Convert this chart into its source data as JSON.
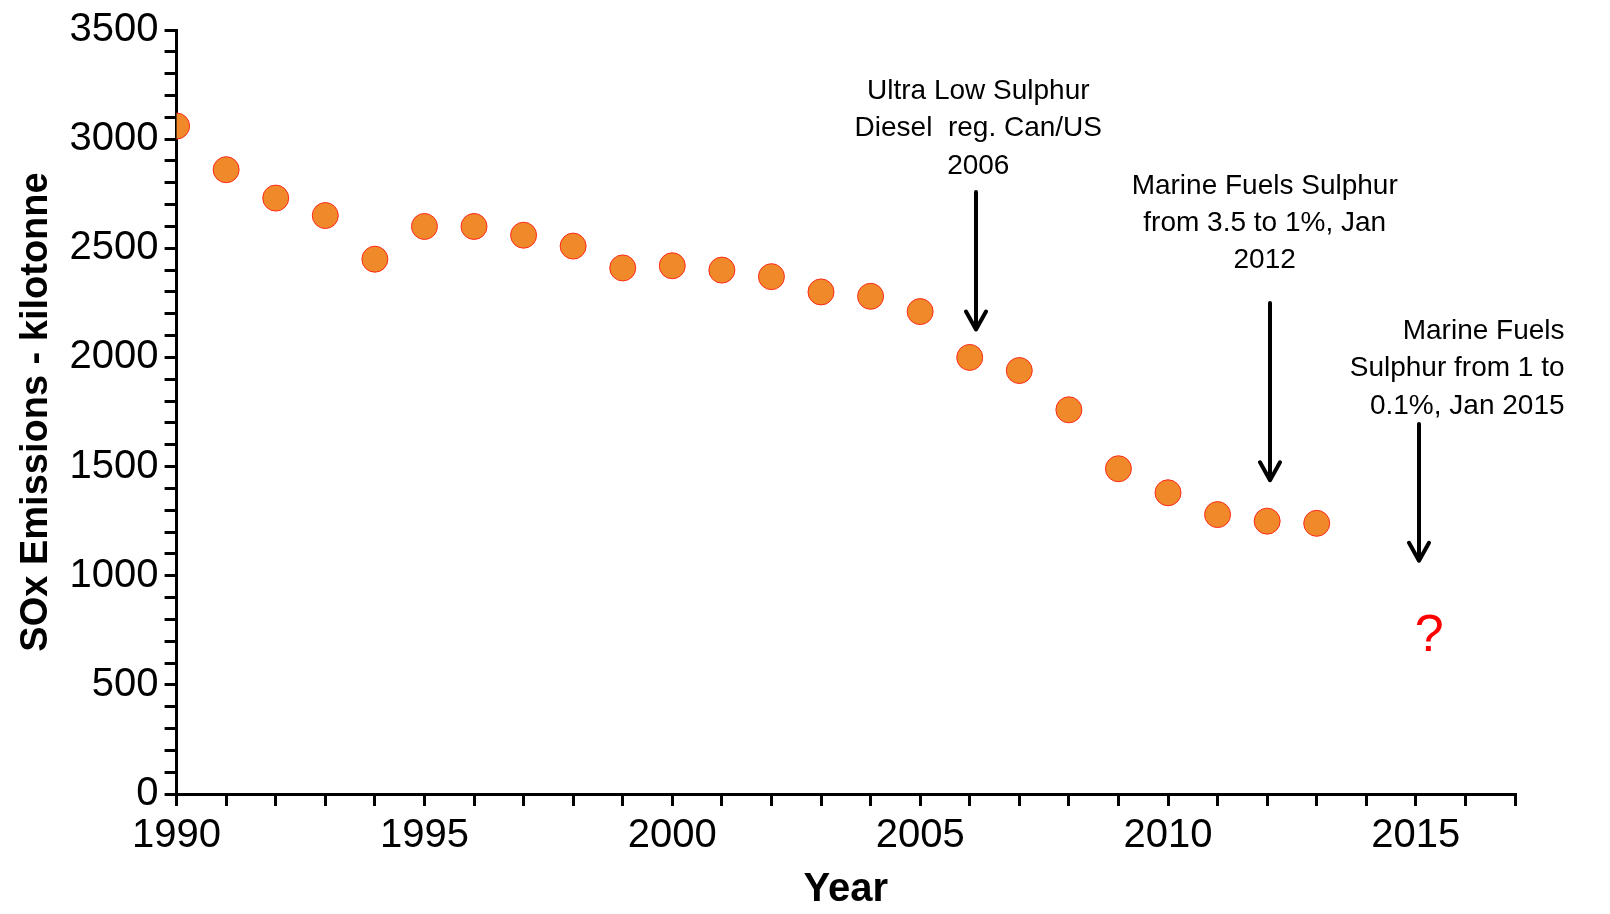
{
  "chart_data": {
    "type": "scatter",
    "xlabel": "Year",
    "ylabel": "SOx Emissions - kilotonne",
    "x": [
      1990,
      1991,
      1992,
      1993,
      1994,
      1995,
      1996,
      1997,
      1998,
      1999,
      2000,
      2001,
      2002,
      2003,
      2004,
      2005,
      2006,
      2007,
      2008,
      2009,
      2010,
      2011,
      2012,
      2013
    ],
    "series": [
      {
        "color": "#f0892a",
        "values": [
          3060,
          2860,
          2730,
          2650,
          2450,
          2600,
          2600,
          2560,
          2510,
          2410,
          2420,
          2400,
          2370,
          2300,
          2280,
          2210,
          2000,
          1940,
          1760,
          1490,
          1380,
          1280,
          1250,
          1240
        ]
      }
    ],
    "marker": "circle",
    "xlim": [
      1990,
      2017
    ],
    "xticks": [
      1990,
      {
        "value": 1991,
        "label": null
      },
      {
        "value": 1992,
        "label": null
      },
      {
        "value": 1993,
        "label": null
      },
      {
        "value": 1994,
        "label": null
      },
      1995,
      {
        "value": 1996,
        "label": null
      },
      {
        "value": 1997,
        "label": null
      },
      {
        "value": 1998,
        "label": null
      },
      {
        "value": 1999,
        "label": null
      },
      2000,
      {
        "value": 2001,
        "label": null
      },
      {
        "value": 2002,
        "label": null
      },
      {
        "value": 2003,
        "label": null
      },
      {
        "value": 2004,
        "label": null
      },
      2005,
      {
        "value": 2006,
        "label": null
      },
      {
        "value": 2007,
        "label": null
      },
      {
        "value": 2008,
        "label": null
      },
      {
        "value": 2009,
        "label": null
      },
      2010,
      {
        "value": 2011,
        "label": null
      },
      {
        "value": 2012,
        "label": null
      },
      {
        "value": 2013,
        "label": null
      },
      {
        "value": 2014,
        "label": null
      },
      2015,
      {
        "value": 2016,
        "label": null
      },
      {
        "value": 2017,
        "label": null
      }
    ],
    "ylim": [
      0,
      3500
    ],
    "yticks": [
      0,
      {
        "value": 100,
        "label": null
      },
      {
        "value": 200,
        "label": null
      },
      {
        "value": 300,
        "label": null
      },
      {
        "value": 400,
        "label": null
      },
      500,
      {
        "value": 600,
        "label": null
      },
      {
        "value": 700,
        "label": null
      },
      {
        "value": 800,
        "label": null
      },
      {
        "value": 900,
        "label": null
      },
      1000,
      {
        "value": 1100,
        "label": null
      },
      {
        "value": 1200,
        "label": null
      },
      {
        "value": 1300,
        "label": null
      },
      {
        "value": 1400,
        "label": null
      },
      1500,
      {
        "value": 1600,
        "label": null
      },
      {
        "value": 1700,
        "label": null
      },
      {
        "value": 1800,
        "label": null
      },
      {
        "value": 1900,
        "label": null
      },
      2000,
      {
        "value": 2100,
        "label": null
      },
      {
        "value": 2200,
        "label": null
      },
      {
        "value": 2300,
        "label": null
      },
      {
        "value": 2400,
        "label": null
      },
      2500,
      {
        "value": 2600,
        "label": null
      },
      {
        "value": 2700,
        "label": null
      },
      {
        "value": 2800,
        "label": null
      },
      {
        "value": 2900,
        "label": null
      },
      3000,
      {
        "value": 3100,
        "label": null
      },
      {
        "value": 3200,
        "label": null
      },
      {
        "value": 3300,
        "label": null
      },
      {
        "value": 3400,
        "label": null
      },
      3500
    ],
    "annotations": [
      "Ultra Low Sulphur\nDiesel  reg. Can/US\n2006",
      "Marine Fuels Sulphur\nfrom 3.5 to 1%, Jan\n2012",
      "Marine Fuels\nSulphur from 1 to\n0.1%, Jan 2015",
      "?"
    ]
  }
}
